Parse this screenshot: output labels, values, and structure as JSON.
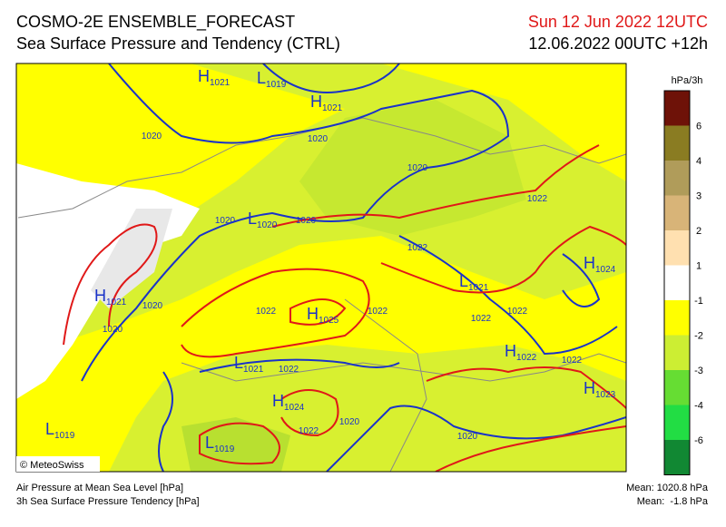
{
  "header": {
    "title": "COSMO-2E ENSEMBLE_FORECAST",
    "subtitle": "Sea Surface Pressure and Tendency (CTRL)",
    "valid": "Sun 12 Jun 2022 12UTC",
    "run": "12.06.2022 00UTC +12h"
  },
  "legend": {
    "unit": "hPa/3h",
    "labels": [
      "6",
      "4",
      "3",
      "2",
      "1",
      "-1",
      "-2",
      "-3",
      "-4",
      "-6"
    ]
  },
  "map": {
    "credit": "© MeteoSwiss",
    "centers": [
      {
        "letter": "H",
        "value": "1021"
      },
      {
        "letter": "L",
        "value": "1019"
      },
      {
        "letter": "H",
        "value": "1021"
      },
      {
        "letter": "L",
        "value": "1020"
      },
      {
        "letter": "H",
        "value": "1021"
      },
      {
        "letter": "H",
        "value": "1025"
      },
      {
        "letter": "L",
        "value": "1021"
      },
      {
        "letter": "H",
        "value": "1024"
      },
      {
        "letter": "H",
        "value": "1022"
      },
      {
        "letter": "L",
        "value": "1021"
      },
      {
        "letter": "H",
        "value": "1023"
      },
      {
        "letter": "H",
        "value": "1024"
      },
      {
        "letter": "L",
        "value": "1019"
      },
      {
        "letter": "L",
        "value": "1019"
      }
    ],
    "isobar_labels": [
      "1020",
      "1020",
      "1020",
      "1020",
      "1020",
      "1020",
      "1020",
      "1020",
      "1020",
      "1022",
      "1022",
      "1022",
      "1022",
      "1022",
      "1022",
      "1022",
      "1022",
      "1022"
    ]
  },
  "footer": {
    "left": [
      "Air Pressure at Mean Sea Level [hPa]",
      "3h Sea Surface Pressure Tendency [hPa]"
    ],
    "right": [
      "Mean: 1020.8 hPa",
      "Mean:  -1.8 hPa"
    ]
  }
}
